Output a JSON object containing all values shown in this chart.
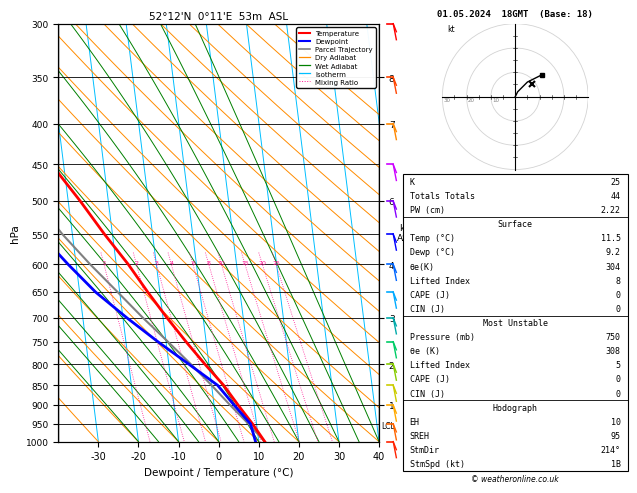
{
  "title_left": "52°12'N  0°11'E  53m  ASL",
  "title_right": "01.05.2024  18GMT  (Base: 18)",
  "xlabel": "Dewpoint / Temperature (°C)",
  "ylabel_left": "hPa",
  "lcl_pressure": 955,
  "temperature_profile": {
    "pressure": [
      1000,
      950,
      900,
      850,
      800,
      750,
      700,
      650,
      600,
      550,
      500,
      450,
      400,
      350,
      300
    ],
    "temp": [
      11.5,
      9.0,
      6.0,
      3.0,
      -1.0,
      -5.0,
      -9.0,
      -13.0,
      -17.0,
      -22.0,
      -27.0,
      -33.0,
      -40.0,
      -47.0,
      -53.0
    ]
  },
  "dewpoint_profile": {
    "pressure": [
      1000,
      950,
      900,
      850,
      800,
      750,
      700,
      650,
      600,
      550,
      500,
      450,
      400,
      350,
      300
    ],
    "temp": [
      9.2,
      8.5,
      5.0,
      1.5,
      -5.0,
      -12.0,
      -19.0,
      -26.0,
      -32.0,
      -38.0,
      -44.0,
      -50.0,
      -55.0,
      -61.0,
      -65.0
    ]
  },
  "parcel_profile": {
    "pressure": [
      1000,
      950,
      900,
      850,
      800,
      750,
      700,
      650,
      600,
      550,
      500,
      450,
      400,
      350,
      300
    ],
    "temp": [
      11.5,
      8.0,
      4.0,
      0.0,
      -4.5,
      -9.5,
      -15.0,
      -20.5,
      -26.5,
      -32.5,
      -38.0,
      -43.5,
      -49.0,
      -54.0,
      -59.0
    ]
  },
  "skew_factor": 25,
  "colors": {
    "temperature": "#ff0000",
    "dewpoint": "#0000ff",
    "parcel": "#808080",
    "dry_adiabat": "#ff8c00",
    "wet_adiabat": "#008000",
    "isotherm": "#00bfff",
    "mixing_ratio": "#ff1493",
    "background": "#ffffff",
    "grid": "#000000"
  },
  "info_rows": [
    [
      "K",
      "25"
    ],
    [
      "Totals Totals",
      "44"
    ],
    [
      "PW (cm)",
      "2.22"
    ],
    [
      "HEADER",
      "Surface"
    ],
    [
      "Temp (°C)",
      "11.5"
    ],
    [
      "Dewp (°C)",
      "9.2"
    ],
    [
      "θe(K)",
      "304"
    ],
    [
      "Lifted Index",
      "8"
    ],
    [
      "CAPE (J)",
      "0"
    ],
    [
      "CIN (J)",
      "0"
    ],
    [
      "HEADER",
      "Most Unstable"
    ],
    [
      "Pressure (mb)",
      "750"
    ],
    [
      "θe (K)",
      "308"
    ],
    [
      "Lifted Index",
      "5"
    ],
    [
      "CAPE (J)",
      "0"
    ],
    [
      "CIN (J)",
      "0"
    ],
    [
      "HEADER",
      "Hodograph"
    ],
    [
      "EH",
      "10"
    ],
    [
      "SREH",
      "95"
    ],
    [
      "StmDir",
      "214°"
    ],
    [
      "StmSpd (kt)",
      "1B"
    ]
  ],
  "wind_barb_pressures": [
    300,
    350,
    400,
    450,
    500,
    550,
    600,
    650,
    700,
    750,
    800,
    850,
    900,
    950,
    1000
  ],
  "wind_barb_colors": [
    "#ff0000",
    "#ff4400",
    "#ff8800",
    "#cc00ff",
    "#8800ff",
    "#0000ff",
    "#0066ff",
    "#00aaff",
    "#00aaaa",
    "#00cc66",
    "#88cc00",
    "#cccc00",
    "#ffaa00",
    "#ff6600",
    "#ff2200"
  ],
  "km_tick_pressures": [
    350,
    400,
    500,
    600,
    700,
    800,
    900
  ],
  "km_tick_values": [
    8,
    7,
    6,
    4,
    3,
    2,
    1
  ]
}
